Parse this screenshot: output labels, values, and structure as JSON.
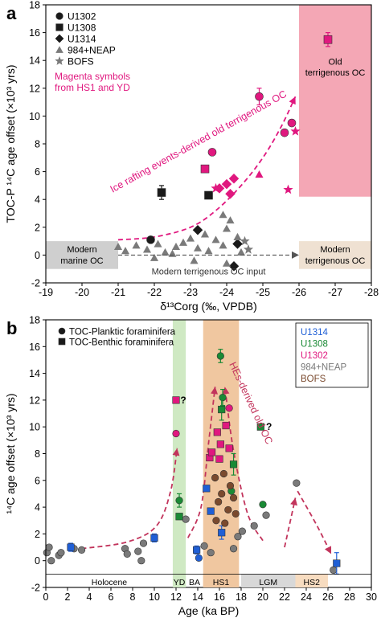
{
  "colors": {
    "magenta": "#e0187f",
    "dark": "#1a1a1a",
    "gray": "#7a7a7a",
    "blue": "#1f5fd6",
    "green": "#1a8a35",
    "brown": "#7a4a2e",
    "pink_box": "#f4a7b5",
    "gray_box": "#cfcfcf",
    "beige_box": "#efe1d2",
    "yd_band": "#cfe9c3",
    "hs1_band": "#f0c7a0",
    "lgm_band": "#d8d8d8",
    "hs2_band": "#f7dcc0"
  },
  "chart_data": [
    {
      "panel": "a",
      "type": "scatter",
      "ylabel": "TOC-P ¹⁴C age offset (×10³ yrs)",
      "xlabel": "δ¹³Corg (‰, VPDB)",
      "xlim": [
        -19,
        -28
      ],
      "ylim": [
        -2,
        18
      ],
      "xticks": [
        "-19",
        "-20",
        "-21",
        "-22",
        "-23",
        "-24",
        "-25",
        "-26",
        "-27",
        "-28"
      ],
      "yticks": [
        "-2",
        "0",
        "2",
        "4",
        "6",
        "8",
        "10",
        "12",
        "14",
        "16",
        "18"
      ],
      "legend": {
        "placement": "top-left",
        "entries": [
          {
            "label": "U1302",
            "marker": "circle"
          },
          {
            "label": "U1308",
            "marker": "square"
          },
          {
            "label": "U1314",
            "marker": "diamond"
          },
          {
            "label": "984+NEAP",
            "marker": "triangle"
          },
          {
            "label": "BOFS",
            "marker": "star"
          }
        ],
        "note": "Magenta symbols from HS1 and YD"
      },
      "annotations": {
        "curve_label": "Ice rafting events-derived old terrigenous OC",
        "modern_marine": [
          "Modern",
          "marine OC"
        ],
        "modern_terr": [
          "Modern",
          "terrigenous OC"
        ],
        "old_terr": [
          "Old",
          "terrigenous OC"
        ],
        "input_label": "Modern terrigenous OC input"
      },
      "series": [
        {
          "name": "U1302",
          "marker": "circle",
          "points": [
            {
              "x": -24.9,
              "y": 11.4,
              "color": "magenta",
              "err": 0.6
            },
            {
              "x": -25.6,
              "y": 8.8,
              "color": "magenta"
            },
            {
              "x": -25.8,
              "y": 9.5,
              "color": "magenta"
            },
            {
              "x": -23.6,
              "y": 7.4,
              "color": "magenta"
            },
            {
              "x": -21.9,
              "y": 1.1,
              "color": "dark"
            }
          ]
        },
        {
          "name": "U1308",
          "marker": "square",
          "points": [
            {
              "x": -26.8,
              "y": 15.5,
              "color": "magenta",
              "err": 0.5
            },
            {
              "x": -23.4,
              "y": 6.2,
              "color": "magenta"
            },
            {
              "x": -22.2,
              "y": 4.5,
              "color": "dark",
              "err": 0.5
            },
            {
              "x": -23.5,
              "y": 4.3,
              "color": "dark"
            }
          ]
        },
        {
          "name": "U1314",
          "marker": "diamond",
          "points": [
            {
              "x": -24.0,
              "y": 5.1,
              "color": "magenta"
            },
            {
              "x": -24.2,
              "y": 5.5,
              "color": "magenta"
            },
            {
              "x": -24.1,
              "y": 4.4,
              "color": "magenta"
            },
            {
              "x": -23.8,
              "y": 4.8,
              "color": "magenta"
            },
            {
              "x": -23.2,
              "y": 1.8,
              "color": "dark"
            },
            {
              "x": -24.3,
              "y": 0.8,
              "color": "dark"
            },
            {
              "x": -24.2,
              "y": -0.8,
              "color": "dark"
            }
          ]
        },
        {
          "name": "984+NEAP",
          "marker": "triangle",
          "points": [
            {
              "x": -24.9,
              "y": 5.8,
              "color": "magenta"
            },
            {
              "x": -24.1,
              "y": 2.5,
              "color": "gray"
            },
            {
              "x": -23.9,
              "y": 2.9,
              "color": "gray"
            },
            {
              "x": -24.0,
              "y": 1.9,
              "color": "gray"
            },
            {
              "x": -23.4,
              "y": 1.5,
              "color": "gray"
            },
            {
              "x": -23.0,
              "y": 1.2,
              "color": "gray"
            },
            {
              "x": -23.7,
              "y": 1.1,
              "color": "gray"
            },
            {
              "x": -24.3,
              "y": 1.3,
              "color": "gray"
            },
            {
              "x": -21.0,
              "y": 0.6,
              "color": "gray"
            },
            {
              "x": -21.2,
              "y": 0.3,
              "color": "gray"
            },
            {
              "x": -21.5,
              "y": 0.7,
              "color": "gray"
            },
            {
              "x": -21.8,
              "y": 0.4,
              "color": "gray"
            },
            {
              "x": -22.1,
              "y": 0.8,
              "color": "gray"
            },
            {
              "x": -22.3,
              "y": 0.2,
              "color": "gray"
            },
            {
              "x": -22.6,
              "y": 0.6,
              "color": "gray"
            },
            {
              "x": -22.8,
              "y": 0.9,
              "color": "gray"
            },
            {
              "x": -23.2,
              "y": 0.5,
              "color": "gray"
            },
            {
              "x": -23.5,
              "y": 0.3,
              "color": "gray"
            },
            {
              "x": -23.9,
              "y": 0.7,
              "color": "gray"
            },
            {
              "x": -24.4,
              "y": 0.2,
              "color": "gray"
            },
            {
              "x": -22.0,
              "y": -0.2,
              "color": "gray"
            },
            {
              "x": -23.1,
              "y": -0.4,
              "color": "gray"
            },
            {
              "x": -24.0,
              "y": -0.6,
              "color": "gray"
            },
            {
              "x": -22.5,
              "y": 0.1,
              "color": "gray"
            }
          ]
        },
        {
          "name": "BOFS",
          "marker": "star",
          "points": [
            {
              "x": -25.7,
              "y": 4.7,
              "color": "magenta"
            },
            {
              "x": -25.9,
              "y": 8.9,
              "color": "magenta"
            },
            {
              "x": -23.7,
              "y": 4.8,
              "color": "magenta"
            },
            {
              "x": -24.5,
              "y": 1.0,
              "color": "gray"
            },
            {
              "x": -24.6,
              "y": 0.4,
              "color": "gray"
            }
          ]
        }
      ],
      "trend_curve": [
        {
          "x": -21.0,
          "y": 1.1
        },
        {
          "x": -22.0,
          "y": 1.3
        },
        {
          "x": -23.0,
          "y": 2.0
        },
        {
          "x": -23.7,
          "y": 3.2
        },
        {
          "x": -24.4,
          "y": 5.0
        },
        {
          "x": -25.0,
          "y": 7.0
        },
        {
          "x": -25.5,
          "y": 9.2
        },
        {
          "x": -25.9,
          "y": 11.4
        }
      ]
    },
    {
      "panel": "b",
      "type": "scatter",
      "ylabel": "¹⁴C age offset (×10³ yrs)",
      "xlabel": "Age (ka BP)",
      "xlim": [
        0,
        30
      ],
      "ylim": [
        -2,
        18
      ],
      "xticks": [
        "0",
        "2",
        "4",
        "6",
        "8",
        "10",
        "12",
        "14",
        "16",
        "18",
        "20",
        "22",
        "24",
        "26",
        "28",
        "30"
      ],
      "yticks": [
        "-2",
        "0",
        "2",
        "4",
        "6",
        "8",
        "10",
        "12",
        "14",
        "16",
        "18"
      ],
      "legend": {
        "placement": "top-left",
        "entries": [
          {
            "label": "TOC-Planktic foraminifera",
            "marker": "circle"
          },
          {
            "label": "TOC-Benthic foraminifera",
            "marker": "square"
          }
        ]
      },
      "site_legend": {
        "placement": "top-right",
        "entries": [
          {
            "label": "U1314",
            "color": "blue"
          },
          {
            "label": "U1308",
            "color": "green"
          },
          {
            "label": "U1302",
            "color": "magenta"
          },
          {
            "label": "984+NEAP",
            "color": "gray"
          },
          {
            "label": "BOFS",
            "color": "brown"
          }
        ]
      },
      "bands": [
        {
          "label": "YD",
          "from": 11.7,
          "to": 12.9,
          "color": "yd_band"
        },
        {
          "label": "HS1",
          "from": 14.5,
          "to": 17.8,
          "color": "hs1_band"
        },
        {
          "label": "LGM",
          "from": 18.0,
          "to": 23.0,
          "color": "lgm_band"
        },
        {
          "label": "HS2",
          "from": 23.0,
          "to": 26.0,
          "color": "hs2_band"
        }
      ],
      "period_labels": [
        {
          "label": "Holocene",
          "from": 0,
          "to": 11.7
        },
        {
          "label": "YD",
          "from": 11.7,
          "to": 12.9
        },
        {
          "label": "BA",
          "from": 12.9,
          "to": 14.5
        },
        {
          "label": "HS1",
          "from": 14.5,
          "to": 17.8
        },
        {
          "label": "LGM",
          "from": 18.0,
          "to": 23.0
        },
        {
          "label": "HS2",
          "from": 23.0,
          "to": 26.0
        }
      ],
      "annotations": {
        "curve_label": "HEs-derived old OC",
        "question_marks": [
          {
            "text": "?",
            "x": 12.4,
            "y": 12.0
          },
          {
            "text": "?",
            "x": 20.3,
            "y": 10.0
          }
        ]
      },
      "series": [
        {
          "name": "984+NEAP planktic",
          "marker": "circle",
          "color": "gray",
          "points": [
            {
              "x": 0.1,
              "y": 0.6
            },
            {
              "x": 0.3,
              "y": 1.0
            },
            {
              "x": 0.5,
              "y": 0.0
            },
            {
              "x": 1.2,
              "y": 0.4
            },
            {
              "x": 1.4,
              "y": 0.6
            },
            {
              "x": 2.6,
              "y": 0.9
            },
            {
              "x": 3.3,
              "y": 0.8
            },
            {
              "x": 7.3,
              "y": 0.9
            },
            {
              "x": 7.5,
              "y": 0.5
            },
            {
              "x": 8.5,
              "y": 0.7
            },
            {
              "x": 9.0,
              "y": 1.3
            },
            {
              "x": 8.8,
              "y": 0.0
            },
            {
              "x": 12.9,
              "y": 3.1
            },
            {
              "x": 14.6,
              "y": 1.1
            },
            {
              "x": 15.2,
              "y": 0.6
            },
            {
              "x": 17.3,
              "y": 0.9
            },
            {
              "x": 17.7,
              "y": 1.8
            },
            {
              "x": 18.1,
              "y": 2.2
            },
            {
              "x": 19.2,
              "y": 2.6
            },
            {
              "x": 20.3,
              "y": 3.4
            },
            {
              "x": 23.1,
              "y": 5.8
            },
            {
              "x": 26.5,
              "y": -0.7
            }
          ]
        },
        {
          "name": "U1314 planktic",
          "marker": "circle",
          "color": "blue",
          "points": [
            {
              "x": 14.1,
              "y": 0.2
            }
          ]
        },
        {
          "name": "U1314 benthic",
          "marker": "square",
          "color": "blue",
          "points": [
            {
              "x": 2.3,
              "y": 1.0,
              "err": 0.3
            },
            {
              "x": 10.0,
              "y": 1.7,
              "err": 0.3
            },
            {
              "x": 13.9,
              "y": 0.8,
              "err": 0.3
            },
            {
              "x": 14.8,
              "y": 5.4
            },
            {
              "x": 15.2,
              "y": 3.7
            },
            {
              "x": 16.2,
              "y": 2.1,
              "err": 0.5
            },
            {
              "x": 26.8,
              "y": -0.2,
              "err": 0.8
            }
          ]
        },
        {
          "name": "U1308 planktic",
          "marker": "circle",
          "color": "green",
          "points": [
            {
              "x": 16.1,
              "y": 15.3,
              "err": 0.5
            },
            {
              "x": 16.3,
              "y": 12.2,
              "err": 0.6
            },
            {
              "x": 17.1,
              "y": 5.2
            },
            {
              "x": 12.3,
              "y": 4.5,
              "err": 0.5
            },
            {
              "x": 20.0,
              "y": 4.2
            }
          ]
        },
        {
          "name": "U1308 benthic",
          "marker": "square",
          "color": "green",
          "points": [
            {
              "x": 16.2,
              "y": 11.3,
              "err": 0.8
            },
            {
              "x": 17.3,
              "y": 7.2,
              "err": 0.8
            },
            {
              "x": 12.3,
              "y": 3.3
            },
            {
              "x": 19.8,
              "y": 10.0
            }
          ]
        },
        {
          "name": "U1302 planktic",
          "marker": "circle",
          "color": "magenta",
          "points": [
            {
              "x": 12.0,
              "y": 9.5
            },
            {
              "x": 16.9,
              "y": 11.4
            }
          ]
        },
        {
          "name": "U1302 benthic",
          "marker": "square",
          "color": "magenta",
          "points": [
            {
              "x": 12.0,
              "y": 12.0
            },
            {
              "x": 15.1,
              "y": 7.7
            },
            {
              "x": 15.3,
              "y": 8.1
            },
            {
              "x": 16.1,
              "y": 8.7
            },
            {
              "x": 16.9,
              "y": 8.4
            },
            {
              "x": 15.8,
              "y": 9.6
            },
            {
              "x": 16.6,
              "y": 10.1
            },
            {
              "x": 16.0,
              "y": 7.6
            }
          ]
        },
        {
          "name": "BOFS planktic",
          "marker": "circle",
          "color": "brown",
          "points": [
            {
              "x": 15.6,
              "y": 6.2
            },
            {
              "x": 16.4,
              "y": 6.5
            },
            {
              "x": 17.0,
              "y": 5.6
            },
            {
              "x": 16.2,
              "y": 5.0
            },
            {
              "x": 17.3,
              "y": 4.7
            },
            {
              "x": 15.9,
              "y": 4.4
            },
            {
              "x": 16.8,
              "y": 3.8
            },
            {
              "x": 15.7,
              "y": 3.0
            },
            {
              "x": 17.5,
              "y": 3.5
            },
            {
              "x": 16.5,
              "y": 2.8
            }
          ]
        }
      ],
      "trend_curves": [
        [
          {
            "x": 3.3,
            "y": 0.9
          },
          {
            "x": 7.5,
            "y": 1.4
          },
          {
            "x": 10.2,
            "y": 2.6
          },
          {
            "x": 11.5,
            "y": 5.2
          },
          {
            "x": 12.1,
            "y": 8.4
          }
        ],
        [
          {
            "x": 13.1,
            "y": 1.7
          },
          {
            "x": 14.3,
            "y": 4.0
          },
          {
            "x": 15.0,
            "y": 8.8
          },
          {
            "x": 15.6,
            "y": 13.0
          }
        ],
        [
          {
            "x": 20.0,
            "y": 1.5
          },
          {
            "x": 18.6,
            "y": 3.5
          },
          {
            "x": 17.3,
            "y": 8.2
          },
          {
            "x": 16.5,
            "y": 13.0
          }
        ],
        [
          {
            "x": 22.0,
            "y": 1.0
          },
          {
            "x": 23.0,
            "y": 4.7
          }
        ],
        [
          {
            "x": 23.2,
            "y": 5.2
          },
          {
            "x": 25.0,
            "y": 2.6
          },
          {
            "x": 26.3,
            "y": 0.5
          }
        ]
      ]
    }
  ],
  "panel_labels": [
    "a",
    "b"
  ]
}
